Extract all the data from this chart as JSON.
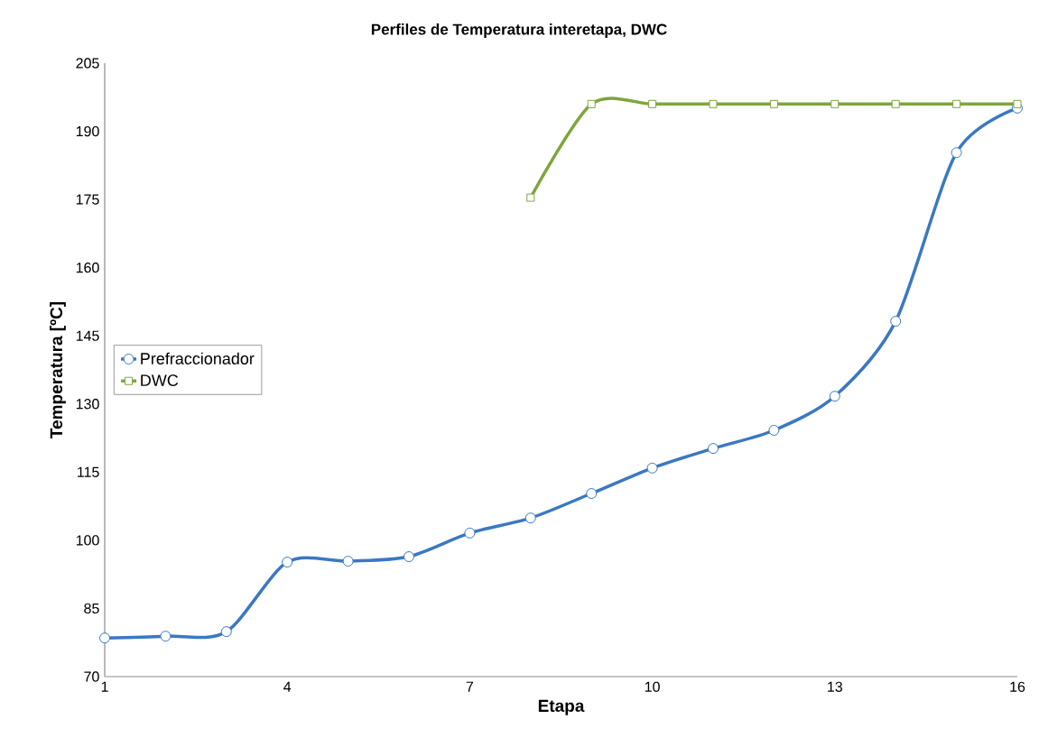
{
  "chart_data": {
    "type": "line",
    "title": "Perfiles de Temperatura interetapa, DWC",
    "xlabel": "Etapa",
    "ylabel": "Temperatura [ºC]",
    "xlim": [
      1,
      16
    ],
    "xticks": [
      1,
      4,
      7,
      10,
      13,
      16
    ],
    "ylim": [
      70,
      205
    ],
    "yticks": [
      70,
      85,
      100,
      115,
      130,
      145,
      160,
      175,
      190,
      205
    ],
    "grid": false,
    "legend": "left",
    "series": [
      {
        "name": "Prefraccionador",
        "color": "#3a78c2",
        "marker": "circle",
        "x": [
          1,
          2,
          3,
          4,
          5,
          6,
          7,
          8,
          9,
          10,
          11,
          12,
          13,
          14,
          15,
          16
        ],
        "values": [
          78.5,
          78.9,
          79.9,
          95.2,
          95.4,
          96.4,
          101.6,
          104.9,
          110.3,
          115.9,
          120.2,
          124.2,
          131.7,
          148.2,
          185.3,
          195.1
        ]
      },
      {
        "name": "DWC",
        "color": "#7ca63c",
        "marker": "square",
        "x": [
          8,
          9,
          10,
          11,
          12,
          13,
          14,
          15,
          16
        ],
        "values": [
          175.4,
          196,
          196,
          196,
          196,
          196,
          196,
          196,
          196
        ]
      }
    ]
  }
}
